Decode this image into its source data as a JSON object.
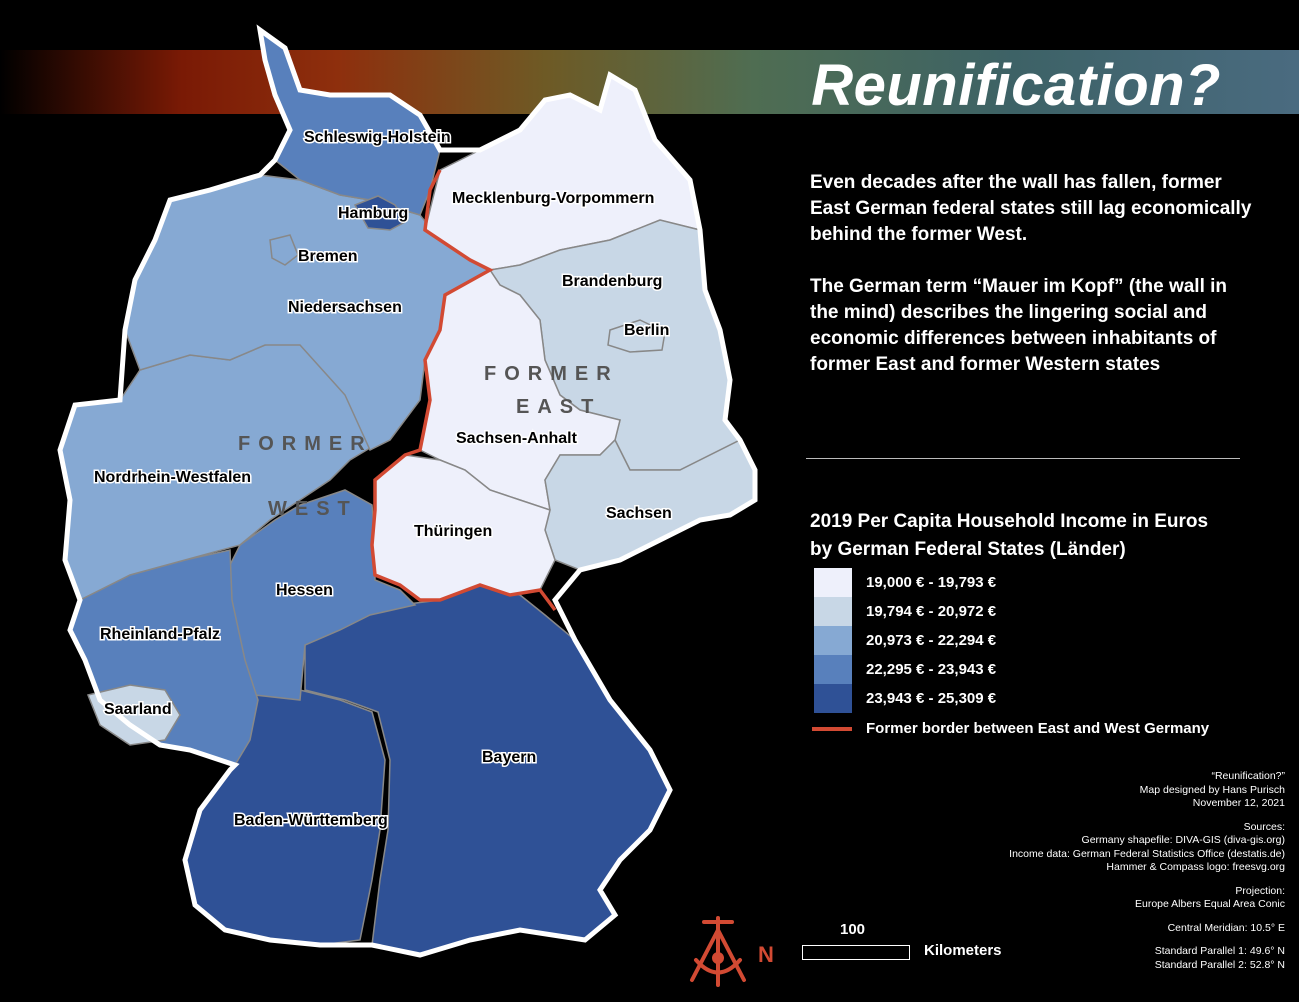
{
  "title": "Reunification?",
  "intro": {
    "para1": "Even decades after the wall has fallen, former East German federal states still lag economically behind the former West.",
    "para2": "The German term “Mauer im Kopf” (the wall in the mind) describes the lingering social and economic differences between inhabitants of former East and former Western states"
  },
  "legend": {
    "title_line1": "2019 Per Capita Household Income in Euros",
    "title_line2": "by German Federal States (Länder)",
    "classes": [
      {
        "label": "19,000 € - 19,793 €",
        "color": "#eef0fb"
      },
      {
        "label": "19,794 € - 20,972 €",
        "color": "#c8d7e6"
      },
      {
        "label": "20,973 € - 22,294 €",
        "color": "#86a9d3"
      },
      {
        "label": "22,295 € - 23,943 €",
        "color": "#5880bc"
      },
      {
        "label": "23,943 € - 25,309 €",
        "color": "#2f5196"
      }
    ],
    "border_label": "Former border between East and West Germany",
    "border_color": "#d24a33"
  },
  "map": {
    "region_west": [
      "FORMER",
      "WEST"
    ],
    "region_east": [
      "FORMER",
      "EAST"
    ],
    "states": {
      "schleswig_holstein": "Schleswig-Holstein",
      "hamburg": "Hamburg",
      "mecklenburg": "Mecklenburg-Vorpommern",
      "bremen": "Bremen",
      "brandenburg": "Brandenburg",
      "niedersachsen": "Niedersachsen",
      "berlin": "Berlin",
      "sachsen_anhalt": "Sachsen-Anhalt",
      "nrw": "Nordrhein-Westfalen",
      "sachsen": "Sachsen",
      "thueringen": "Thüringen",
      "hessen": "Hessen",
      "rheinland_pfalz": "Rheinland-Pfalz",
      "saarland": "Saarland",
      "bayern": "Bayern",
      "baden_wuerttemberg": "Baden-Württemberg"
    }
  },
  "scale": {
    "value": "100",
    "unit": "Kilometers",
    "north": "N"
  },
  "credits": {
    "block1": [
      "“Reunification?”",
      "Map designed by Hans Purisch",
      "November 12, 2021"
    ],
    "block2": [
      "Sources:",
      "Germany shapefile: DIVA-GIS (diva-gis.org)",
      "Income data: German Federal Statistics Office (destatis.de)",
      "Hammer & Compass logo: freesvg.org"
    ],
    "block3": [
      "Projection:",
      "Europe Albers Equal Area Conic"
    ],
    "block4": [
      "Central Meridian: 10.5° E"
    ],
    "block5": [
      "Standard Parallel 1: 49.6° N",
      "Standard Parallel 2: 52.8° N"
    ]
  }
}
